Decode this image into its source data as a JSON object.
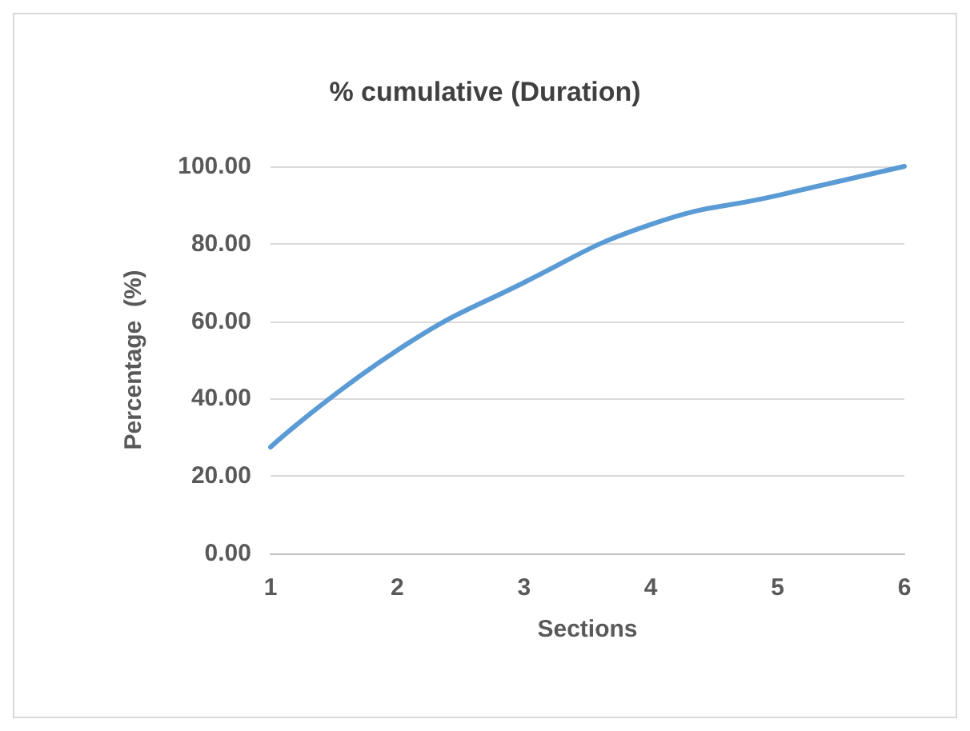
{
  "chart_data": {
    "type": "line",
    "title": "% cumulative (Duration)",
    "xlabel": "Sections",
    "ylabel": "Percentage  (%)",
    "x": [
      1,
      2,
      3,
      4,
      5,
      6
    ],
    "series": [
      {
        "color": "#5b9bd5",
        "values": [
          27.5,
          52.5,
          70,
          85,
          92.5,
          100
        ]
      }
    ],
    "xlim": [
      1,
      6
    ],
    "xticks": [
      1,
      2,
      3,
      4,
      5,
      6
    ],
    "ylim": [
      0,
      100
    ],
    "yticks": [
      {
        "value": 0,
        "label": "0.00"
      },
      {
        "value": 20,
        "label": "20.00"
      },
      {
        "value": 40,
        "label": "40.00"
      },
      {
        "value": 60,
        "label": "60.00"
      },
      {
        "value": 80,
        "label": "80.00"
      },
      {
        "value": 100,
        "label": "100.00"
      }
    ],
    "grid": "y",
    "marker": "none",
    "line_style": "solid"
  }
}
